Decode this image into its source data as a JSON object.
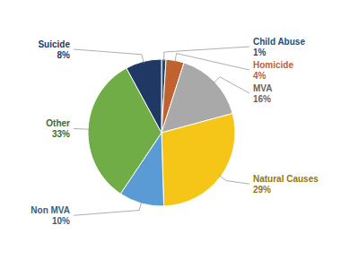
{
  "chart_data": {
    "type": "pie",
    "categories": [
      "Child Abuse",
      "Homicide",
      "MVA",
      "Natural Causes",
      "Non MVA",
      "Other",
      "Suicide"
    ],
    "values": [
      1,
      4,
      16,
      29,
      10,
      33,
      8
    ],
    "value_labels": [
      "1%",
      "4%",
      "16%",
      "29%",
      "10%",
      "33%",
      "8%"
    ],
    "colors": [
      "#1f4e79",
      "#c0622f",
      "#a9a9a9",
      "#f5c518",
      "#5b9bd5",
      "#70ad47",
      "#1f3864"
    ],
    "data_labels": true
  }
}
